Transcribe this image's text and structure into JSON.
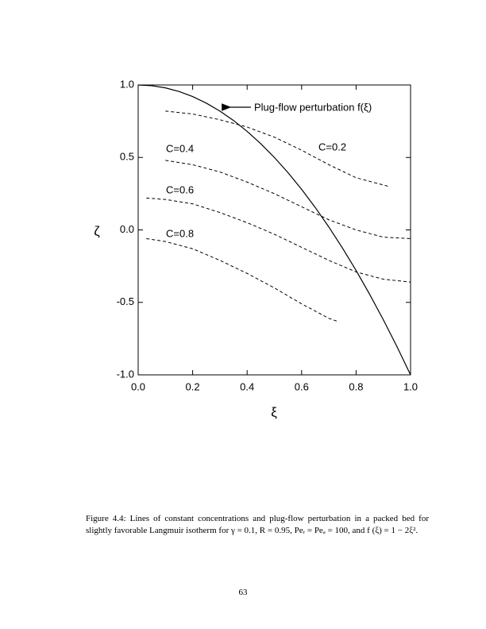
{
  "chart_data": {
    "type": "line",
    "x_label": "ξ",
    "y_label": "ζ",
    "xlim": [
      0,
      1
    ],
    "ylim": [
      -1,
      1
    ],
    "xticks": [
      {
        "value": 0,
        "label": "0.0"
      },
      0.2,
      0.4,
      0.6,
      0.8,
      {
        "value": 1,
        "label": "1.0"
      }
    ],
    "yticks": [
      {
        "value": -1,
        "label": "-1.0"
      },
      -0.5,
      {
        "value": 0,
        "label": "0.0"
      },
      0.5,
      {
        "value": 1,
        "label": "1.0"
      }
    ],
    "grid": false,
    "series": [
      {
        "name": "Plug-flow perturbation f(ξ)",
        "color": "#000000",
        "dashed": false,
        "x": [
          0,
          0.05,
          0.1,
          0.15,
          0.2,
          0.25,
          0.3,
          0.35,
          0.4,
          0.45,
          0.5,
          0.55,
          0.6,
          0.65,
          0.7,
          0.75,
          0.8,
          0.85,
          0.9,
          0.95,
          1
        ],
        "values": [
          1,
          0.995,
          0.98,
          0.955,
          0.92,
          0.875,
          0.82,
          0.755,
          0.68,
          0.595,
          0.5,
          0.395,
          0.28,
          0.155,
          0.02,
          -0.125,
          -0.28,
          -0.445,
          -0.62,
          -0.805,
          -1
        ]
      },
      {
        "name": "C=0.2",
        "color": "#000000",
        "dashed": true,
        "x": [
          0.1,
          0.2,
          0.3,
          0.4,
          0.5,
          0.6,
          0.7,
          0.8,
          0.9,
          0.92
        ],
        "values": [
          0.82,
          0.8,
          0.76,
          0.71,
          0.64,
          0.55,
          0.45,
          0.36,
          0.31,
          0.3
        ]
      },
      {
        "name": "C=0.4",
        "color": "#000000",
        "dashed": true,
        "x": [
          0.1,
          0.2,
          0.3,
          0.4,
          0.5,
          0.6,
          0.7,
          0.8,
          0.9,
          1
        ],
        "values": [
          0.48,
          0.45,
          0.4,
          0.33,
          0.25,
          0.16,
          0.07,
          0,
          -0.05,
          -0.06
        ]
      },
      {
        "name": "C=0.6",
        "color": "#000000",
        "dashed": true,
        "x": [
          0.03,
          0.1,
          0.2,
          0.3,
          0.4,
          0.5,
          0.6,
          0.7,
          0.8,
          0.9,
          1
        ],
        "values": [
          0.22,
          0.21,
          0.18,
          0.12,
          0.05,
          -0.03,
          -0.12,
          -0.21,
          -0.29,
          -0.34,
          -0.36
        ]
      },
      {
        "name": "C=0.8",
        "color": "#000000",
        "dashed": true,
        "x": [
          0.03,
          0.1,
          0.2,
          0.3,
          0.4,
          0.5,
          0.6,
          0.7,
          0.73
        ],
        "values": [
          -0.06,
          -0.08,
          -0.13,
          -0.21,
          -0.3,
          -0.4,
          -0.51,
          -0.61,
          -0.63
        ]
      }
    ]
  },
  "caption": "Figure 4.4: Lines of constant concentrations and plug-flow perturbation in a packed bed for slightly favorable Langmuir isotherm for γ = 0.1, R = 0.95, Peᵣ = Peₐ = 100, and f (ξ) = 1 − 2ξ².",
  "page_number": "63"
}
